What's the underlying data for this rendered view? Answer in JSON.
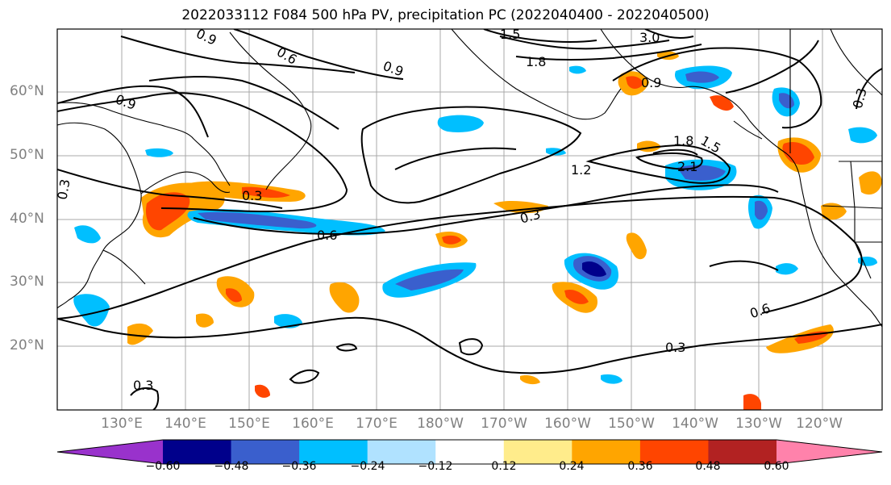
{
  "title": "2022033112 F084 500 hPa PV, precipitation PC (2022040400 - 2022040500)",
  "lat_labels": [
    "60°N",
    "50°N",
    "40°N",
    "30°N",
    "20°N"
  ],
  "lon_labels": [
    "130°E",
    "140°E",
    "150°E",
    "160°E",
    "170°E",
    "180°W",
    "170°W",
    "160°W",
    "150°W",
    "140°W",
    "130°W",
    "120°W"
  ],
  "contour_labels": [
    "0.9",
    "0.6",
    "1.5",
    "3.0",
    "0.9",
    "1.8",
    "0.9",
    "0.9",
    "1.8",
    "1.5",
    "1.2",
    "2.1",
    "0.3",
    "0.3",
    "0.6",
    "0.3",
    "0.6",
    "0.3",
    "0.3",
    "0.3"
  ],
  "colorbar": {
    "ticks": [
      "−0.60",
      "−0.48",
      "−0.36",
      "−0.24",
      "−0.12",
      "0.12",
      "0.24",
      "0.36",
      "0.48",
      "0.60"
    ],
    "colors": [
      "#9932cc",
      "#00008b",
      "#3a5fcd",
      "#00bfff",
      "#b0e2ff",
      "#ffffff",
      "#ffec8b",
      "#ffa500",
      "#ff4500",
      "#b22222",
      "#ff82ab"
    ]
  },
  "colors": {
    "land_outline": "#000000",
    "grid": "#a8a8a8",
    "contour": "#000000"
  }
}
